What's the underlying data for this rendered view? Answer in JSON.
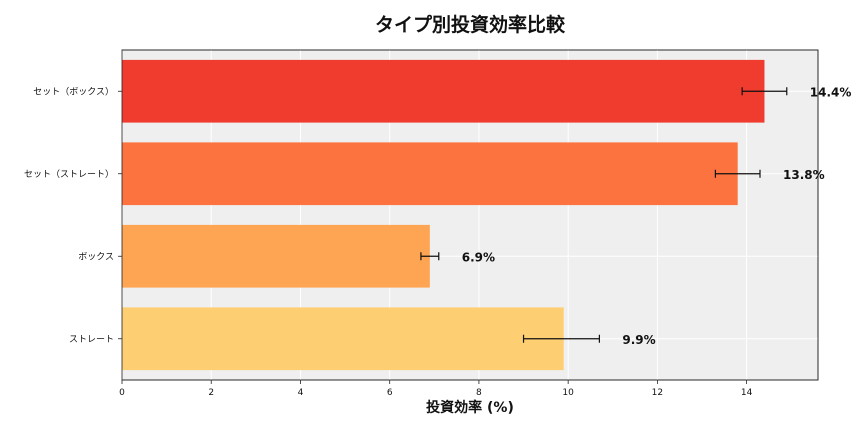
{
  "chart_data": {
    "type": "bar",
    "orientation": "horizontal",
    "title": "タイプ別投資効率比較",
    "xlabel": "投資効率 (%)",
    "ylabel": "",
    "xlim": [
      0,
      15.6
    ],
    "xticks": [
      0,
      2,
      4,
      6,
      8,
      10,
      12,
      14
    ],
    "grid": true,
    "categories": [
      "セット（ボックス）",
      "セット（ストレート）",
      "ボックス",
      "ストレート"
    ],
    "values": [
      14.4,
      13.8,
      6.9,
      9.9
    ],
    "error_low": [
      13.9,
      13.3,
      6.7,
      9.0
    ],
    "error_high": [
      14.9,
      14.3,
      7.1,
      10.7
    ],
    "value_labels": [
      "14.4%",
      "13.8%",
      "6.9%",
      "9.9%"
    ],
    "colors": [
      "#ee3124",
      "#fd6c35",
      "#fea04a",
      "#fecb6a"
    ]
  }
}
